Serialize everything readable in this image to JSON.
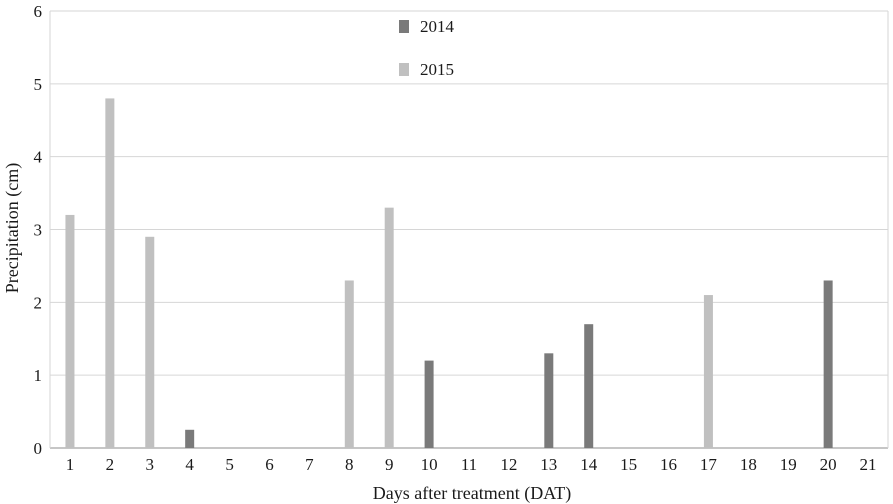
{
  "chart_data": {
    "type": "bar",
    "xlabel": "Days after treatment (DAT)",
    "ylabel": "Precipitation (cm)",
    "ylim": [
      0,
      6
    ],
    "yticks": [
      "0",
      "1",
      "2",
      "3",
      "4",
      "5",
      "6"
    ],
    "grid": true,
    "legend_position": "top-center",
    "categories": [
      "1",
      "2",
      "3",
      "4",
      "5",
      "6",
      "7",
      "8",
      "9",
      "10",
      "11",
      "12",
      "13",
      "14",
      "15",
      "16",
      "17",
      "18",
      "19",
      "20",
      "21"
    ],
    "series": [
      {
        "name": "2014",
        "color": "#7a7a7a",
        "values": [
          0,
          0,
          0,
          0.25,
          0,
          0,
          0,
          0,
          0,
          1.2,
          0,
          0,
          1.3,
          1.7,
          0,
          0,
          0,
          0,
          0,
          2.3,
          0
        ]
      },
      {
        "name": "2015",
        "color": "#c0c0c0",
        "values": [
          3.2,
          4.8,
          2.9,
          0,
          0,
          0,
          0,
          2.3,
          3.3,
          0,
          0,
          0,
          0,
          0,
          0,
          0,
          2.1,
          0,
          0,
          0,
          0
        ]
      }
    ]
  }
}
